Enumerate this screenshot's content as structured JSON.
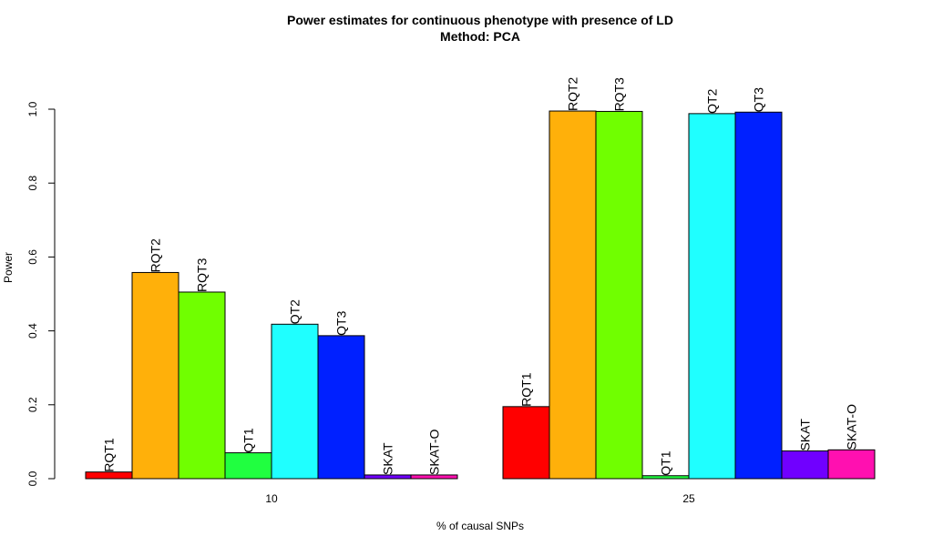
{
  "chart_data": {
    "type": "bar",
    "title": "Power estimates for continuous phenotype with presence of LD",
    "subtitle": "Method: PCA",
    "xlabel": "% of causal SNPs",
    "ylabel": "Power",
    "ylim": [
      0,
      1
    ],
    "yticks": [
      "0.0",
      "0.2",
      "0.4",
      "0.6",
      "0.8",
      "1.0"
    ],
    "grid": false,
    "categories": [
      "10",
      "25"
    ],
    "series": [
      {
        "name": "RQT1",
        "color": "#ff0000",
        "values": [
          0.018,
          0.195
        ]
      },
      {
        "name": "RQT2",
        "color": "#ffb00a",
        "values": [
          0.558,
          0.995
        ]
      },
      {
        "name": "RQT3",
        "color": "#70ff00",
        "values": [
          0.505,
          0.994
        ]
      },
      {
        "name": "QT1",
        "color": "#20ff40",
        "values": [
          0.07,
          0.008
        ]
      },
      {
        "name": "QT2",
        "color": "#1fffff",
        "values": [
          0.418,
          0.988
        ]
      },
      {
        "name": "QT3",
        "color": "#0020ff",
        "values": [
          0.387,
          0.992
        ]
      },
      {
        "name": "SKAT",
        "color": "#7000ff",
        "values": [
          0.01,
          0.075
        ]
      },
      {
        "name": "SKAT-O",
        "color": "#ff10b0",
        "values": [
          0.01,
          0.078
        ]
      }
    ]
  }
}
